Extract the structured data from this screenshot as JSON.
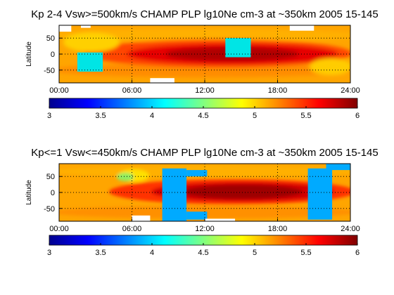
{
  "colormap": [
    "#00008f",
    "#0000ff",
    "#0080ff",
    "#00ffff",
    "#80ff80",
    "#ffff00",
    "#ff8000",
    "#ff0000",
    "#800000"
  ],
  "fill_colors": {
    "white": "#ffffff",
    "cyan": "#00e5e5",
    "blue": "#00aaff"
  },
  "chart_data": [
    {
      "type": "heatmap",
      "title": "Kp 2-4 Vsw>=500km/s CHAMP PLP lg10Ne cm-3 at ~350km 2005 15-145",
      "ylabel": "Latitude",
      "xlabel": "",
      "x_range": [
        "00:00",
        "24:00"
      ],
      "xticks": [
        "00:00",
        "06:00",
        "12:00",
        "18:00",
        "24:00"
      ],
      "yticks": [
        "50",
        "0",
        "-50"
      ],
      "ylim": [
        -90,
        90
      ],
      "grid": true,
      "colorbar": {
        "range": [
          3,
          6
        ],
        "ticks": [
          "3",
          "3.5",
          "4",
          "4.5",
          "5",
          "5.5",
          "6"
        ]
      },
      "peak": {
        "hour": 14,
        "lat": 5,
        "value": 6.0
      },
      "background_value": 5.2,
      "overlays": [
        {
          "fill": "cyan",
          "hour0": 1.5,
          "hour1": 3.6,
          "lat0": -55,
          "lat1": 5
        },
        {
          "fill": "cyan",
          "hour0": 13.7,
          "hour1": 15.8,
          "lat0": -10,
          "lat1": 50
        },
        {
          "fill": "white",
          "hour0": 0,
          "hour1": 1.0,
          "lat0": 70,
          "lat1": 90
        },
        {
          "fill": "white",
          "hour0": 1.8,
          "hour1": 2.6,
          "lat0": 82,
          "lat1": 90
        },
        {
          "fill": "white",
          "hour0": 19.0,
          "hour1": 21.0,
          "lat0": 73,
          "lat1": 90
        },
        {
          "fill": "white",
          "hour0": 7.5,
          "hour1": 9.5,
          "lat0": -90,
          "lat1": -75
        }
      ]
    },
    {
      "type": "heatmap",
      "title": "Kp<=1 Vsw<=450km/s CHAMP PLP lg10Ne cm-3 at ~350km 2005 15-145",
      "ylabel": "Latitude",
      "xlabel": "",
      "x_range": [
        "00:00",
        "24:00"
      ],
      "xticks": [
        "00:00",
        "06:00",
        "12:00",
        "18:00",
        "24:00"
      ],
      "yticks": [
        "50",
        "0",
        "-50"
      ],
      "ylim": [
        -90,
        90
      ],
      "grid": true,
      "colorbar": {
        "range": [
          3,
          6
        ],
        "ticks": [
          "3",
          "3.5",
          "4",
          "4.5",
          "5",
          "5.5",
          "6"
        ]
      },
      "peak": {
        "hour": 15,
        "lat": 0,
        "value": 6.0
      },
      "background_value": 5.2,
      "overlays": [
        {
          "fill": "blue",
          "hour0": 8.5,
          "hour1": 10.5,
          "lat0": -90,
          "lat1": 75
        },
        {
          "fill": "blue",
          "hour0": 10.5,
          "hour1": 12.2,
          "lat0": 50,
          "lat1": 70
        },
        {
          "fill": "blue",
          "hour0": 10.5,
          "hour1": 12.2,
          "lat0": -85,
          "lat1": -60
        },
        {
          "fill": "blue",
          "hour0": 20.5,
          "hour1": 22.5,
          "lat0": -85,
          "lat1": 75
        },
        {
          "fill": "blue",
          "hour0": 22.0,
          "hour1": 24.0,
          "lat0": 70,
          "lat1": 90
        },
        {
          "fill": "white",
          "hour0": 6.0,
          "hour1": 7.5,
          "lat0": -90,
          "lat1": -72
        },
        {
          "fill": "white",
          "hour0": 12.0,
          "hour1": 14.5,
          "lat0": -90,
          "lat1": -82
        }
      ]
    }
  ]
}
